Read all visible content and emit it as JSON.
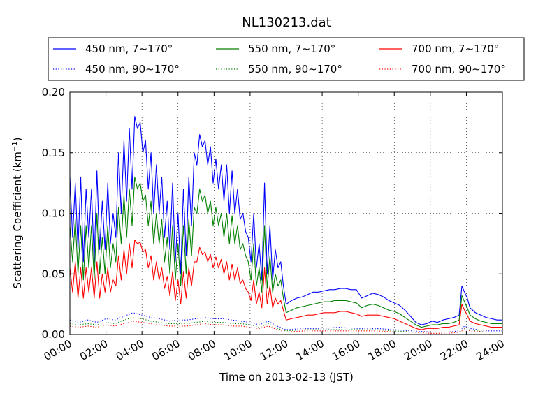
{
  "chart_data": {
    "type": "line",
    "title": "NL130213.dat",
    "xlabel": "Time on 2013-02-13 (JST)",
    "ylabel": "Scattering Coefficient (km",
    "ylabel_exp": "−1",
    "ylabel_close": ")",
    "x_unit": "hour",
    "xlim": [
      0,
      24
    ],
    "ylim": [
      0.0,
      0.2
    ],
    "grid": true,
    "legend_position": "top",
    "xticks": [
      {
        "v": 0,
        "label": "00:00"
      },
      {
        "v": 2,
        "label": "02:00"
      },
      {
        "v": 4,
        "label": "04:00"
      },
      {
        "v": 6,
        "label": "06:00"
      },
      {
        "v": 8,
        "label": "08:00"
      },
      {
        "v": 10,
        "label": "10:00"
      },
      {
        "v": 12,
        "label": "12:00"
      },
      {
        "v": 14,
        "label": "14:00"
      },
      {
        "v": 16,
        "label": "16:00"
      },
      {
        "v": 18,
        "label": "18:00"
      },
      {
        "v": 20,
        "label": "20:00"
      },
      {
        "v": 22,
        "label": "22:00"
      },
      {
        "v": 24,
        "label": "24:00"
      }
    ],
    "yticks": [
      {
        "v": 0.0,
        "label": "0.00"
      },
      {
        "v": 0.05,
        "label": "0.05"
      },
      {
        "v": 0.1,
        "label": "0.10"
      },
      {
        "v": 0.15,
        "label": "0.15"
      },
      {
        "v": 0.2,
        "label": "0.20"
      }
    ],
    "series": [
      {
        "name": "450 nm, 7∼170°",
        "color": "#0000ff",
        "style": "solid",
        "x": [
          0,
          0.15,
          0.3,
          0.45,
          0.6,
          0.75,
          0.9,
          1.05,
          1.2,
          1.35,
          1.5,
          1.65,
          1.8,
          1.95,
          2.1,
          2.25,
          2.4,
          2.55,
          2.7,
          2.85,
          3.0,
          3.15,
          3.3,
          3.45,
          3.6,
          3.75,
          3.9,
          4.05,
          4.2,
          4.35,
          4.5,
          4.65,
          4.8,
          4.95,
          5.1,
          5.25,
          5.4,
          5.55,
          5.7,
          5.85,
          6.0,
          6.15,
          6.3,
          6.45,
          6.6,
          6.75,
          6.9,
          7.05,
          7.2,
          7.35,
          7.5,
          7.65,
          7.8,
          7.95,
          8.1,
          8.25,
          8.4,
          8.55,
          8.7,
          8.85,
          9.0,
          9.15,
          9.3,
          9.45,
          9.6,
          9.75,
          9.9,
          10.05,
          10.2,
          10.35,
          10.5,
          10.65,
          10.8,
          10.95,
          11.1,
          11.25,
          11.4,
          11.55,
          11.7,
          11.85,
          12.0,
          12.3,
          12.6,
          12.9,
          13.2,
          13.5,
          13.8,
          14.1,
          14.4,
          14.7,
          15.0,
          15.3,
          15.6,
          15.9,
          16.2,
          16.5,
          16.8,
          17.1,
          17.4,
          17.7,
          18.0,
          18.3,
          18.6,
          18.9,
          19.2,
          19.5,
          19.8,
          20.1,
          20.4,
          20.7,
          21.0,
          21.3,
          21.6,
          21.75,
          21.9,
          22.05,
          22.2,
          22.5,
          22.8,
          23.1,
          23.4,
          23.7,
          24.0
        ],
        "y": [
          0.13,
          0.08,
          0.125,
          0.07,
          0.13,
          0.06,
          0.12,
          0.08,
          0.12,
          0.06,
          0.135,
          0.07,
          0.11,
          0.07,
          0.125,
          0.075,
          0.1,
          0.08,
          0.15,
          0.1,
          0.16,
          0.11,
          0.17,
          0.12,
          0.18,
          0.17,
          0.175,
          0.15,
          0.16,
          0.12,
          0.15,
          0.1,
          0.14,
          0.1,
          0.13,
          0.08,
          0.11,
          0.07,
          0.125,
          0.06,
          0.1,
          0.05,
          0.12,
          0.065,
          0.13,
          0.09,
          0.15,
          0.14,
          0.165,
          0.155,
          0.16,
          0.14,
          0.155,
          0.125,
          0.145,
          0.12,
          0.14,
          0.11,
          0.14,
          0.1,
          0.135,
          0.1,
          0.12,
          0.095,
          0.1,
          0.085,
          0.08,
          0.06,
          0.1,
          0.055,
          0.075,
          0.045,
          0.125,
          0.05,
          0.09,
          0.045,
          0.07,
          0.055,
          0.06,
          0.04,
          0.025,
          0.028,
          0.03,
          0.031,
          0.033,
          0.035,
          0.035,
          0.036,
          0.037,
          0.037,
          0.038,
          0.038,
          0.037,
          0.037,
          0.03,
          0.032,
          0.034,
          0.033,
          0.031,
          0.028,
          0.026,
          0.024,
          0.02,
          0.015,
          0.01,
          0.008,
          0.009,
          0.011,
          0.01,
          0.012,
          0.013,
          0.014,
          0.016,
          0.04,
          0.035,
          0.03,
          0.022,
          0.018,
          0.016,
          0.014,
          0.013,
          0.012,
          0.012
        ]
      },
      {
        "name": "550 nm, 7∼170°",
        "color": "#008000",
        "style": "solid",
        "x": [
          0,
          0.15,
          0.3,
          0.45,
          0.6,
          0.75,
          0.9,
          1.05,
          1.2,
          1.35,
          1.5,
          1.65,
          1.8,
          1.95,
          2.1,
          2.25,
          2.4,
          2.55,
          2.7,
          2.85,
          3.0,
          3.15,
          3.3,
          3.45,
          3.6,
          3.75,
          3.9,
          4.05,
          4.2,
          4.35,
          4.5,
          4.65,
          4.8,
          4.95,
          5.1,
          5.25,
          5.4,
          5.55,
          5.7,
          5.85,
          6.0,
          6.15,
          6.3,
          6.45,
          6.6,
          6.75,
          6.9,
          7.05,
          7.2,
          7.35,
          7.5,
          7.65,
          7.8,
          7.95,
          8.1,
          8.25,
          8.4,
          8.55,
          8.7,
          8.85,
          9.0,
          9.15,
          9.3,
          9.45,
          9.6,
          9.75,
          9.9,
          10.05,
          10.2,
          10.35,
          10.5,
          10.65,
          10.8,
          10.95,
          11.1,
          11.25,
          11.4,
          11.55,
          11.7,
          11.85,
          12.0,
          12.3,
          12.6,
          12.9,
          13.2,
          13.5,
          13.8,
          14.1,
          14.4,
          14.7,
          15.0,
          15.3,
          15.6,
          15.9,
          16.2,
          16.5,
          16.8,
          17.1,
          17.4,
          17.7,
          18.0,
          18.3,
          18.6,
          18.9,
          19.2,
          19.5,
          19.8,
          20.1,
          20.4,
          20.7,
          21.0,
          21.3,
          21.6,
          21.75,
          21.9,
          22.05,
          22.2,
          22.5,
          22.8,
          23.1,
          23.4,
          23.7,
          24.0
        ],
        "y": [
          0.09,
          0.06,
          0.095,
          0.05,
          0.09,
          0.045,
          0.09,
          0.055,
          0.09,
          0.045,
          0.1,
          0.05,
          0.08,
          0.05,
          0.09,
          0.055,
          0.075,
          0.06,
          0.105,
          0.075,
          0.115,
          0.08,
          0.12,
          0.09,
          0.13,
          0.12,
          0.125,
          0.11,
          0.115,
          0.09,
          0.11,
          0.075,
          0.1,
          0.075,
          0.095,
          0.06,
          0.08,
          0.05,
          0.09,
          0.045,
          0.075,
          0.04,
          0.09,
          0.05,
          0.095,
          0.065,
          0.105,
          0.1,
          0.12,
          0.11,
          0.115,
          0.1,
          0.11,
          0.09,
          0.105,
          0.09,
          0.1,
          0.08,
          0.1,
          0.075,
          0.098,
          0.075,
          0.09,
          0.07,
          0.075,
          0.065,
          0.06,
          0.045,
          0.075,
          0.04,
          0.055,
          0.035,
          0.09,
          0.038,
          0.065,
          0.035,
          0.05,
          0.04,
          0.045,
          0.03,
          0.018,
          0.02,
          0.022,
          0.023,
          0.024,
          0.025,
          0.026,
          0.027,
          0.027,
          0.028,
          0.028,
          0.028,
          0.027,
          0.026,
          0.022,
          0.024,
          0.025,
          0.024,
          0.022,
          0.02,
          0.019,
          0.017,
          0.014,
          0.011,
          0.008,
          0.006,
          0.007,
          0.008,
          0.008,
          0.009,
          0.009,
          0.01,
          0.012,
          0.032,
          0.027,
          0.022,
          0.016,
          0.013,
          0.011,
          0.01,
          0.009,
          0.009,
          0.009
        ]
      },
      {
        "name": "700 nm, 7∼170°",
        "color": "#ff0000",
        "style": "solid",
        "x": [
          0,
          0.15,
          0.3,
          0.45,
          0.6,
          0.75,
          0.9,
          1.05,
          1.2,
          1.35,
          1.5,
          1.65,
          1.8,
          1.95,
          2.1,
          2.25,
          2.4,
          2.55,
          2.7,
          2.85,
          3.0,
          3.15,
          3.3,
          3.45,
          3.6,
          3.75,
          3.9,
          4.05,
          4.2,
          4.35,
          4.5,
          4.65,
          4.8,
          4.95,
          5.1,
          5.25,
          5.4,
          5.55,
          5.7,
          5.85,
          6.0,
          6.15,
          6.3,
          6.45,
          6.6,
          6.75,
          6.9,
          7.05,
          7.2,
          7.35,
          7.5,
          7.65,
          7.8,
          7.95,
          8.1,
          8.25,
          8.4,
          8.55,
          8.7,
          8.85,
          9.0,
          9.15,
          9.3,
          9.45,
          9.6,
          9.75,
          9.9,
          10.05,
          10.2,
          10.35,
          10.5,
          10.65,
          10.8,
          10.95,
          11.1,
          11.25,
          11.4,
          11.55,
          11.7,
          11.85,
          12.0,
          12.3,
          12.6,
          12.9,
          13.2,
          13.5,
          13.8,
          14.1,
          14.4,
          14.7,
          15.0,
          15.3,
          15.6,
          15.9,
          16.2,
          16.5,
          16.8,
          17.1,
          17.4,
          17.7,
          18.0,
          18.3,
          18.6,
          18.9,
          19.2,
          19.5,
          19.8,
          20.1,
          20.4,
          20.7,
          21.0,
          21.3,
          21.6,
          21.75,
          21.9,
          22.05,
          22.2,
          22.5,
          22.8,
          23.1,
          23.4,
          23.7,
          24.0
        ],
        "y": [
          0.055,
          0.035,
          0.06,
          0.03,
          0.055,
          0.03,
          0.055,
          0.035,
          0.055,
          0.03,
          0.06,
          0.03,
          0.05,
          0.035,
          0.055,
          0.035,
          0.045,
          0.04,
          0.065,
          0.045,
          0.07,
          0.05,
          0.075,
          0.055,
          0.078,
          0.075,
          0.076,
          0.068,
          0.07,
          0.055,
          0.065,
          0.045,
          0.06,
          0.045,
          0.055,
          0.038,
          0.048,
          0.032,
          0.052,
          0.028,
          0.045,
          0.025,
          0.052,
          0.03,
          0.055,
          0.04,
          0.06,
          0.06,
          0.072,
          0.066,
          0.068,
          0.06,
          0.066,
          0.055,
          0.064,
          0.055,
          0.062,
          0.05,
          0.06,
          0.045,
          0.058,
          0.045,
          0.055,
          0.042,
          0.045,
          0.038,
          0.035,
          0.028,
          0.045,
          0.025,
          0.035,
          0.022,
          0.055,
          0.025,
          0.04,
          0.022,
          0.03,
          0.025,
          0.028,
          0.02,
          0.012,
          0.013,
          0.014,
          0.015,
          0.016,
          0.016,
          0.017,
          0.018,
          0.018,
          0.018,
          0.019,
          0.019,
          0.018,
          0.017,
          0.015,
          0.016,
          0.016,
          0.016,
          0.015,
          0.014,
          0.013,
          0.011,
          0.009,
          0.007,
          0.005,
          0.004,
          0.005,
          0.005,
          0.005,
          0.006,
          0.006,
          0.007,
          0.008,
          0.025,
          0.02,
          0.016,
          0.011,
          0.009,
          0.008,
          0.007,
          0.006,
          0.006,
          0.006
        ]
      },
      {
        "name": "450 nm, 90∼170°",
        "color": "#0000ff",
        "style": "dotted",
        "x": [
          0,
          0.5,
          1.0,
          1.5,
          2.0,
          2.5,
          3.0,
          3.5,
          4.0,
          4.5,
          5.0,
          5.5,
          6.0,
          6.5,
          7.0,
          7.5,
          8.0,
          8.5,
          9.0,
          9.5,
          10.0,
          10.5,
          11.0,
          11.5,
          12.0,
          13.0,
          14.0,
          15.0,
          16.0,
          17.0,
          18.0,
          19.0,
          20.0,
          21.0,
          21.6,
          21.9,
          22.2,
          23.0,
          24.0
        ],
        "y": [
          0.012,
          0.01,
          0.012,
          0.01,
          0.013,
          0.012,
          0.015,
          0.018,
          0.016,
          0.014,
          0.013,
          0.011,
          0.012,
          0.012,
          0.013,
          0.014,
          0.013,
          0.013,
          0.012,
          0.011,
          0.01,
          0.008,
          0.011,
          0.007,
          0.004,
          0.005,
          0.005,
          0.006,
          0.005,
          0.005,
          0.004,
          0.003,
          0.002,
          0.002,
          0.003,
          0.007,
          0.005,
          0.003,
          0.003
        ]
      },
      {
        "name": "550 nm, 90∼170°",
        "color": "#008000",
        "style": "dotted",
        "x": [
          0,
          0.5,
          1.0,
          1.5,
          2.0,
          2.5,
          3.0,
          3.5,
          4.0,
          4.5,
          5.0,
          5.5,
          6.0,
          6.5,
          7.0,
          7.5,
          8.0,
          8.5,
          9.0,
          9.5,
          10.0,
          10.5,
          11.0,
          11.5,
          12.0,
          13.0,
          14.0,
          15.0,
          16.0,
          17.0,
          18.0,
          19.0,
          20.0,
          21.0,
          21.6,
          21.9,
          22.2,
          23.0,
          24.0
        ],
        "y": [
          0.009,
          0.008,
          0.009,
          0.008,
          0.01,
          0.009,
          0.012,
          0.014,
          0.013,
          0.011,
          0.01,
          0.009,
          0.009,
          0.009,
          0.01,
          0.011,
          0.01,
          0.01,
          0.009,
          0.009,
          0.008,
          0.006,
          0.009,
          0.005,
          0.003,
          0.004,
          0.004,
          0.004,
          0.004,
          0.004,
          0.003,
          0.002,
          0.002,
          0.002,
          0.002,
          0.005,
          0.004,
          0.002,
          0.002
        ]
      },
      {
        "name": "700 nm, 90∼170°",
        "color": "#ff0000",
        "style": "dotted",
        "x": [
          0,
          0.5,
          1.0,
          1.5,
          2.0,
          2.5,
          3.0,
          3.5,
          4.0,
          4.5,
          5.0,
          5.5,
          6.0,
          6.5,
          7.0,
          7.5,
          8.0,
          8.5,
          9.0,
          9.5,
          10.0,
          10.5,
          11.0,
          11.5,
          12.0,
          13.0,
          14.0,
          15.0,
          16.0,
          17.0,
          18.0,
          19.0,
          20.0,
          21.0,
          21.6,
          21.9,
          22.2,
          23.0,
          24.0
        ],
        "y": [
          0.007,
          0.006,
          0.007,
          0.006,
          0.008,
          0.007,
          0.009,
          0.011,
          0.01,
          0.009,
          0.008,
          0.007,
          0.007,
          0.007,
          0.008,
          0.009,
          0.008,
          0.008,
          0.007,
          0.007,
          0.006,
          0.005,
          0.007,
          0.004,
          0.002,
          0.003,
          0.003,
          0.003,
          0.003,
          0.003,
          0.002,
          0.002,
          0.001,
          0.001,
          0.002,
          0.004,
          0.003,
          0.002,
          0.002
        ]
      }
    ]
  }
}
